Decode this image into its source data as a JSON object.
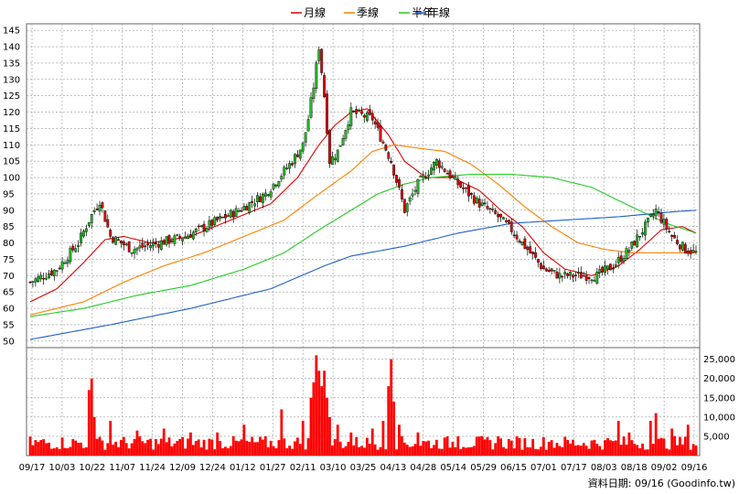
{
  "legend": {
    "items": [
      {
        "label": "月線",
        "color": "#e00000"
      },
      {
        "label": "季線",
        "color": "#ff7f00"
      },
      {
        "label": "半年",
        "color": "#22cc22"
      },
      {
        "label": "年線",
        "color": "#1f5fc8"
      }
    ]
  },
  "footer_text": "資料日期: 09/16  (Goodinfo.tw)",
  "colors": {
    "up": "#22bb22",
    "down": "#e00000",
    "volume": "#ff0000",
    "grid": "#888888"
  },
  "chart_data": [
    {
      "type": "candlestick",
      "price_axis": {
        "ylim": [
          48,
          147
        ],
        "ticks": [
          50,
          55,
          60,
          65,
          70,
          75,
          80,
          85,
          90,
          95,
          100,
          105,
          110,
          115,
          120,
          125,
          130,
          135,
          140,
          145
        ],
        "side": "left"
      },
      "x_tick_labels": [
        "09/17",
        "10/03",
        "10/22",
        "11/07",
        "11/24",
        "12/09",
        "12/24",
        "01/12",
        "01/27",
        "02/11",
        "03/10",
        "03/25",
        "04/13",
        "04/28",
        "05/14",
        "05/29",
        "06/15",
        "07/01",
        "07/17",
        "08/03",
        "08/18",
        "09/02",
        "09/16"
      ],
      "n_sessions": 250,
      "close_anchors": [
        [
          0,
          68
        ],
        [
          10,
          72
        ],
        [
          18,
          80
        ],
        [
          22,
          87
        ],
        [
          26,
          93
        ],
        [
          30,
          82
        ],
        [
          38,
          78
        ],
        [
          48,
          80
        ],
        [
          58,
          82
        ],
        [
          68,
          86
        ],
        [
          78,
          90
        ],
        [
          88,
          95
        ],
        [
          98,
          105
        ],
        [
          102,
          110
        ],
        [
          104,
          118
        ],
        [
          106,
          128
        ],
        [
          108,
          140
        ],
        [
          110,
          125
        ],
        [
          112,
          105
        ],
        [
          115,
          108
        ],
        [
          120,
          120
        ],
        [
          128,
          118
        ],
        [
          135,
          105
        ],
        [
          140,
          90
        ],
        [
          145,
          98
        ],
        [
          152,
          105
        ],
        [
          160,
          98
        ],
        [
          168,
          92
        ],
        [
          175,
          88
        ],
        [
          180,
          84
        ],
        [
          186,
          78
        ],
        [
          192,
          72
        ],
        [
          198,
          70
        ],
        [
          205,
          70
        ],
        [
          212,
          70
        ],
        [
          218,
          73
        ],
        [
          224,
          78
        ],
        [
          230,
          85
        ],
        [
          234,
          90
        ],
        [
          240,
          82
        ],
        [
          245,
          78
        ],
        [
          249,
          77
        ]
      ],
      "ma_series": [
        {
          "name": "月線",
          "points": [
            [
              0,
              62
            ],
            [
              10,
              66
            ],
            [
              20,
              74
            ],
            [
              28,
              81
            ],
            [
              35,
              82
            ],
            [
              45,
              80
            ],
            [
              60,
              82
            ],
            [
              75,
              87
            ],
            [
              90,
              92
            ],
            [
              100,
              100
            ],
            [
              108,
              110
            ],
            [
              114,
              116
            ],
            [
              120,
              120
            ],
            [
              126,
              121
            ],
            [
              134,
              113
            ],
            [
              140,
              105
            ],
            [
              148,
              100
            ],
            [
              158,
              100
            ],
            [
              168,
              96
            ],
            [
              176,
              90
            ],
            [
              184,
              85
            ],
            [
              192,
              77
            ],
            [
              200,
              72
            ],
            [
              210,
              70
            ],
            [
              220,
              73
            ],
            [
              228,
              78
            ],
            [
              236,
              84
            ],
            [
              244,
              85
            ],
            [
              249,
              83
            ]
          ]
        },
        {
          "name": "季線",
          "points": [
            [
              0,
              58
            ],
            [
              20,
              62
            ],
            [
              35,
              68
            ],
            [
              50,
              73
            ],
            [
              65,
              77
            ],
            [
              80,
              82
            ],
            [
              95,
              87
            ],
            [
              108,
              95
            ],
            [
              120,
              102
            ],
            [
              128,
              108
            ],
            [
              136,
              110
            ],
            [
              145,
              109
            ],
            [
              155,
              108
            ],
            [
              165,
              104
            ],
            [
              175,
              98
            ],
            [
              185,
              91
            ],
            [
              195,
              85
            ],
            [
              205,
              80
            ],
            [
              215,
              78
            ],
            [
              225,
              77
            ],
            [
              235,
              77
            ],
            [
              249,
              77
            ]
          ]
        },
        {
          "name": "半年",
          "points": [
            [
              0,
              57.5
            ],
            [
              20,
              60
            ],
            [
              40,
              64
            ],
            [
              60,
              67
            ],
            [
              80,
              72
            ],
            [
              95,
              77
            ],
            [
              108,
              84
            ],
            [
              120,
              90
            ],
            [
              130,
              95
            ],
            [
              140,
              98
            ],
            [
              150,
              100
            ],
            [
              165,
              101
            ],
            [
              180,
              101
            ],
            [
              195,
              100
            ],
            [
              210,
              97
            ],
            [
              225,
              91
            ],
            [
              238,
              86
            ],
            [
              249,
              83
            ]
          ]
        },
        {
          "name": "年線",
          "points": [
            [
              0,
              50.5
            ],
            [
              30,
              55
            ],
            [
              60,
              60
            ],
            [
              90,
              66
            ],
            [
              110,
              73
            ],
            [
              120,
              76
            ],
            [
              140,
              79
            ],
            [
              160,
              83
            ],
            [
              180,
              86
            ],
            [
              200,
              87
            ],
            [
              220,
              88
            ],
            [
              240,
              89.5
            ],
            [
              249,
              90
            ]
          ]
        }
      ]
    },
    {
      "type": "bar",
      "name": "volume",
      "volume_axis": {
        "ylim": [
          0,
          28000
        ],
        "ticks": [
          5000,
          10000,
          15000,
          20000,
          25000
        ],
        "tick_labels": [
          "5,000",
          "10,000",
          "15,000",
          "20,000",
          "25,000"
        ],
        "side": "right"
      },
      "spikes": [
        [
          22,
          17000
        ],
        [
          23,
          20000
        ],
        [
          24,
          10000
        ],
        [
          30,
          9000
        ],
        [
          40,
          6500
        ],
        [
          50,
          7000
        ],
        [
          60,
          6000
        ],
        [
          70,
          6000
        ],
        [
          80,
          8000
        ],
        [
          94,
          12000
        ],
        [
          102,
          9000
        ],
        [
          105,
          15000
        ],
        [
          106,
          19000
        ],
        [
          107,
          26000
        ],
        [
          108,
          22000
        ],
        [
          109,
          18000
        ],
        [
          110,
          22000
        ],
        [
          111,
          15000
        ],
        [
          112,
          10000
        ],
        [
          115,
          8000
        ],
        [
          120,
          6000
        ],
        [
          128,
          7000
        ],
        [
          132,
          9000
        ],
        [
          134,
          18000
        ],
        [
          135,
          25000
        ],
        [
          136,
          14000
        ],
        [
          138,
          8000
        ],
        [
          145,
          6000
        ],
        [
          160,
          5000
        ],
        [
          175,
          5000
        ],
        [
          195,
          4000
        ],
        [
          215,
          4000
        ],
        [
          220,
          9000
        ],
        [
          224,
          6000
        ],
        [
          232,
          9000
        ],
        [
          234,
          11000
        ],
        [
          240,
          7000
        ],
        [
          246,
          8000
        ]
      ],
      "base_volume": 3000
    }
  ]
}
